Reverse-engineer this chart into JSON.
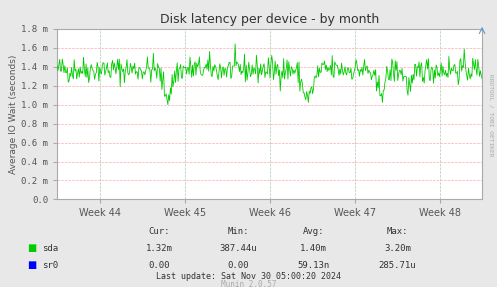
{
  "title": "Disk latency per device - by month",
  "ylabel": "Average IO Wait (seconds)",
  "bg_color": "#e8e8e8",
  "plot_bg_color": "#ffffff",
  "grid_color_h": "#ffaaaa",
  "grid_color_v": "#aaccaa",
  "line_color_sda": "#00cc00",
  "line_color_sr0": "#0000ff",
  "ylim": [
    0.0,
    1.8
  ],
  "ytick_labels": [
    "0.0",
    "0.2 m",
    "0.4 m",
    "0.6 m",
    "0.8 m",
    "1.0 m",
    "1.2 m",
    "1.4 m",
    "1.6 m",
    "1.8 m"
  ],
  "ytick_values": [
    0.0,
    0.2,
    0.4,
    0.6,
    0.8,
    1.0,
    1.2,
    1.4,
    1.6,
    1.8
  ],
  "xtick_labels": [
    "Week 44",
    "Week 45",
    "Week 46",
    "Week 47",
    "Week 48"
  ],
  "xtick_positions": [
    0.1,
    0.3,
    0.5,
    0.7,
    0.9
  ],
  "legend_colors": [
    "#00cc00",
    "#0000ff"
  ],
  "footer_text": "Last update: Sat Nov 30 05:00:20 2024",
  "munin_text": "Munin 2.0.57",
  "rrdtool_text": "RRDTOOL / TOBI OETIKER",
  "table_headers": [
    "Cur:",
    "Min:",
    "Avg:",
    "Max:"
  ],
  "table_sda": [
    "1.32m",
    "387.44u",
    "1.40m",
    "3.20m"
  ],
  "table_sr0": [
    "0.00",
    "0.00",
    "59.13n",
    "285.71u"
  ],
  "n_points": 500,
  "seed": 42
}
